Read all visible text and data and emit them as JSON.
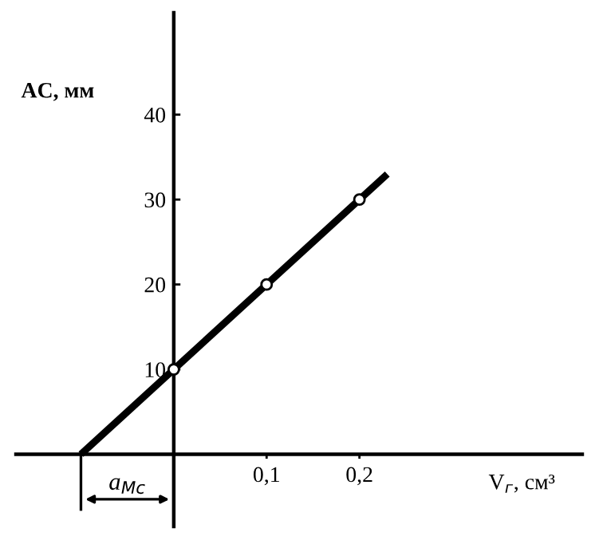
{
  "chart_data": {
    "type": "line",
    "xlabel": "V$_{г}$, см³",
    "ylabel": "AC, мм",
    "annotations": [
      "a$_{Мс}$"
    ],
    "series": [
      {
        "color": "#000000",
        "marker": "none",
        "x": [
          -0.1,
          0.23
        ],
        "values": [
          0,
          33
        ]
      },
      {
        "type": "scatter",
        "color": "#000000",
        "marker": "circle",
        "x": [
          0,
          0.1,
          0.2
        ],
        "values": [
          10,
          20,
          30
        ]
      }
    ],
    "xlim": [
      -0.17,
      0.44
    ],
    "ylim": [
      -8.5,
      52
    ],
    "xticks": [
      {
        "value": 0.1,
        "label": "0,1"
      },
      {
        "value": 0.2,
        "label": "0,2"
      }
    ],
    "yticks": [
      10,
      20,
      30,
      40
    ],
    "grid": false,
    "legend": false
  }
}
